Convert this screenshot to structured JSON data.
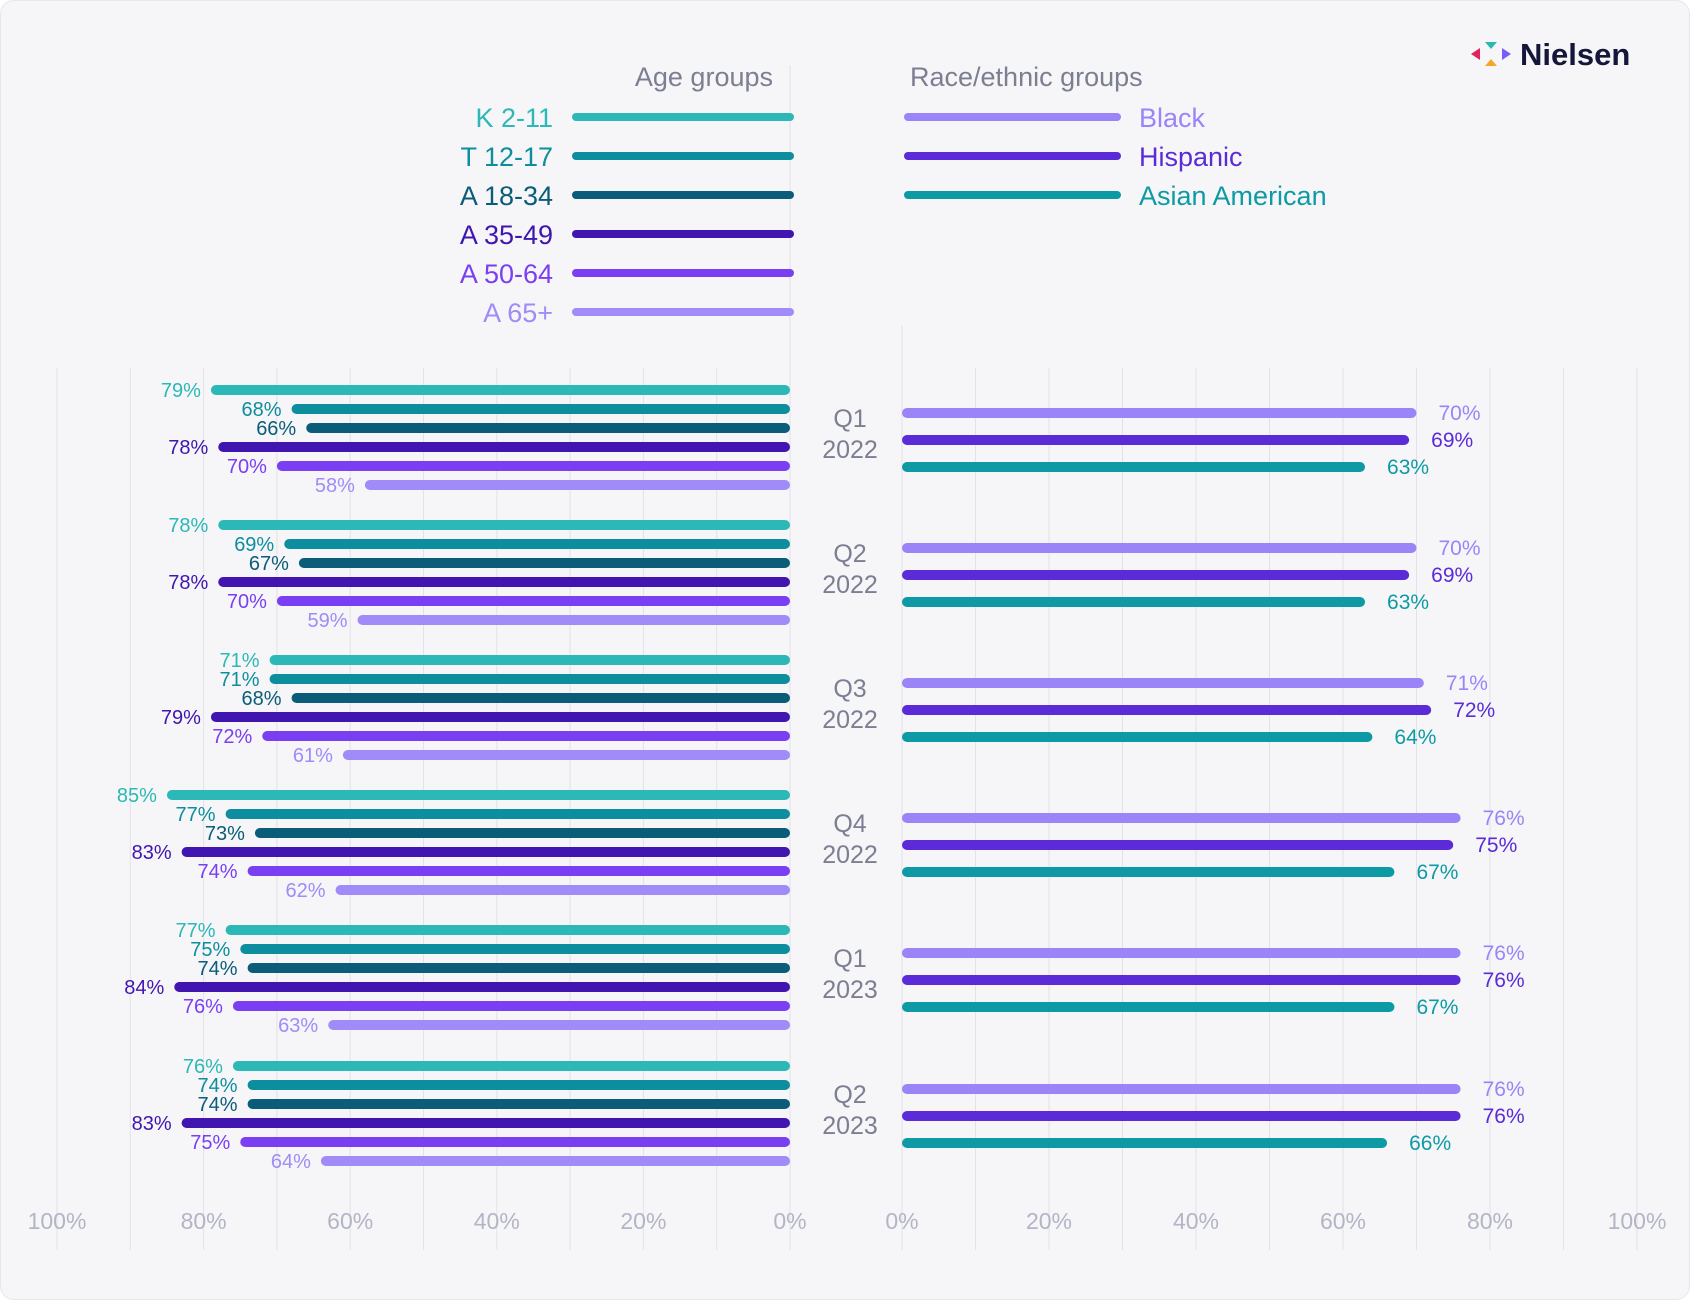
{
  "brand": {
    "name": "Nielsen",
    "mark_colors": [
      "#e0245e",
      "#2bb8b0",
      "#f5a623",
      "#7b5cf5"
    ]
  },
  "legend": {
    "age_title": "Age groups",
    "race_title": "Race/ethnic groups"
  },
  "chart_data": {
    "type": "bar",
    "orientation": "horizontal-mirrored",
    "categories": [
      [
        "Q1",
        "2022"
      ],
      [
        "Q2",
        "2022"
      ],
      [
        "Q3",
        "2022"
      ],
      [
        "Q4",
        "2022"
      ],
      [
        "Q1",
        "2023"
      ],
      [
        "Q2",
        "2023"
      ]
    ],
    "x_ticks": [
      "0%",
      "20%",
      "40%",
      "60%",
      "80%",
      "100%"
    ],
    "xlim": [
      0,
      100
    ],
    "grid": true,
    "left_panel": {
      "legend_title": "Age groups",
      "series": [
        {
          "name": "K 2-11",
          "color": "#2bb8b6",
          "values": [
            79,
            78,
            71,
            85,
            77,
            76
          ]
        },
        {
          "name": "T 12-17",
          "color": "#0d8e9e",
          "values": [
            68,
            69,
            71,
            77,
            75,
            74
          ]
        },
        {
          "name": "A 18-34",
          "color": "#0a5c78",
          "values": [
            66,
            67,
            68,
            73,
            74,
            74
          ]
        },
        {
          "name": "A 35-49",
          "color": "#4015b0",
          "values": [
            78,
            78,
            79,
            83,
            84,
            83
          ]
        },
        {
          "name": "A 50-64",
          "color": "#7a3ff2",
          "values": [
            70,
            70,
            72,
            74,
            76,
            75
          ]
        },
        {
          "name": "A 65+",
          "color": "#a08bf8",
          "values": [
            58,
            59,
            61,
            62,
            63,
            64
          ]
        }
      ]
    },
    "right_panel": {
      "legend_title": "Race/ethnic groups",
      "series": [
        {
          "name": "Black",
          "color": "#9a84f8",
          "values": [
            70,
            70,
            71,
            76,
            76,
            76
          ]
        },
        {
          "name": "Hispanic",
          "color": "#5a2bd6",
          "values": [
            69,
            69,
            72,
            75,
            76,
            76
          ]
        },
        {
          "name": "Asian American",
          "color": "#0e9aa4",
          "values": [
            63,
            63,
            64,
            67,
            67,
            66
          ]
        }
      ]
    }
  }
}
